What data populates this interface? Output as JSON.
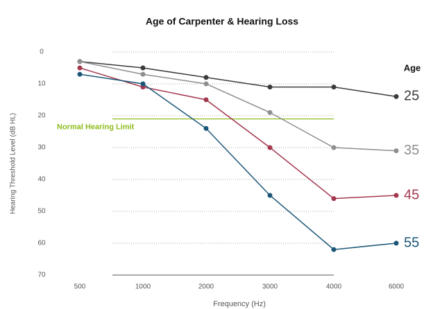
{
  "chart_data": {
    "type": "line",
    "title": "Age of Carpenter & Hearing Loss",
    "x_label": "Frequency (Hz)",
    "y_label": "Hearing Threshold Level (dB HL)",
    "legend_title": "Age",
    "categories": [
      "500",
      "1000",
      "2000",
      "3000",
      "4000",
      "6000"
    ],
    "series": [
      {
        "name": "25",
        "color": "#3a3a3a",
        "values": [
          3,
          5,
          8,
          11,
          11,
          14
        ]
      },
      {
        "name": "35",
        "color": "#8e8e8e",
        "values": [
          3,
          7,
          10,
          19,
          30,
          31
        ]
      },
      {
        "name": "45",
        "color": "#a3384f",
        "values": [
          5,
          11,
          15,
          30,
          46,
          45
        ]
      },
      {
        "name": "55",
        "color": "#1b5677",
        "values": [
          7,
          10,
          24,
          45,
          62,
          60
        ]
      }
    ],
    "annotation": {
      "text": "Normal Hearing Limit",
      "value": 21,
      "color": "#8fbc1e"
    },
    "ylim": [
      0,
      70
    ],
    "y_inverted": true,
    "yticks": [
      0,
      10,
      20,
      30,
      40,
      50,
      60,
      70
    ],
    "grid": true
  }
}
